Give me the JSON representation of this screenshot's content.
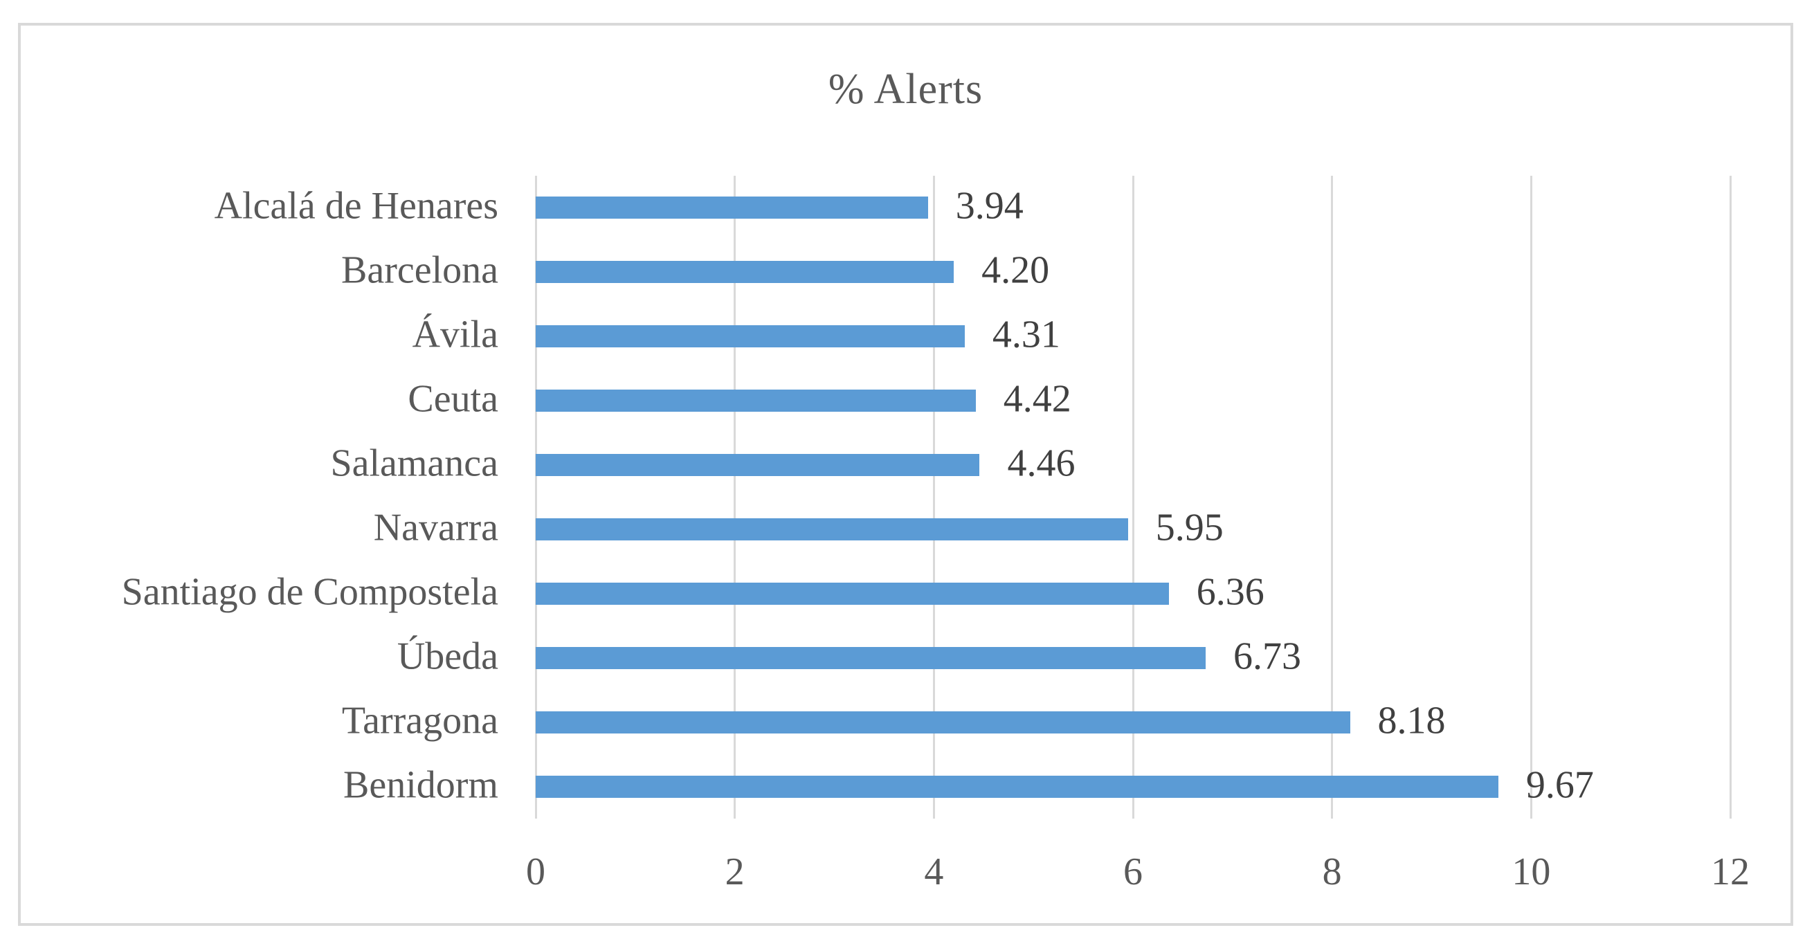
{
  "chart_data": {
    "type": "bar",
    "orientation": "horizontal",
    "title": "% Alerts",
    "categories": [
      "Alcalá de Henares",
      "Barcelona",
      "Ávila",
      "Ceuta",
      "Salamanca",
      "Navarra",
      "Santiago de Compostela",
      "Úbeda",
      "Tarragona",
      "Benidorm"
    ],
    "values": [
      3.94,
      4.2,
      4.31,
      4.42,
      4.46,
      5.95,
      6.36,
      6.73,
      8.18,
      9.67
    ],
    "value_labels": [
      "3.94",
      "4.20",
      "4.31",
      "4.42",
      "4.46",
      "5.95",
      "6.36",
      "6.73",
      "8.18",
      "9.67"
    ],
    "xlabel": "",
    "ylabel": "",
    "xlim": [
      0,
      12
    ],
    "x_ticks": [
      0,
      2,
      4,
      6,
      8,
      10,
      12
    ],
    "x_tick_labels": [
      "0",
      "2",
      "4",
      "6",
      "8",
      "10",
      "12"
    ],
    "grid": true,
    "legend": false,
    "colors": {
      "bar": "#5B9BD5",
      "gridline": "#D9D9D9",
      "frame_border": "#D9D9D9",
      "title_text": "#595959",
      "category_text": "#595959",
      "tick_text": "#595959",
      "value_label_text": "#404040",
      "background": "#FFFFFF"
    }
  }
}
